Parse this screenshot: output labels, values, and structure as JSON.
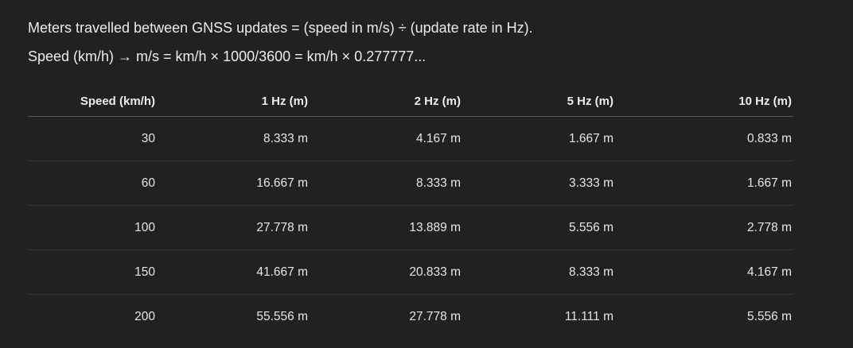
{
  "intro": {
    "line1": "Meters travelled between GNSS updates = (speed in m/s) ÷ (update rate in Hz).",
    "line2": "Speed (km/h) → m/s = km/h × 1000/3600 = km/h × 0.277777..."
  },
  "table": {
    "headers": [
      "Speed (km/h)",
      "1 Hz (m)",
      "2 Hz (m)",
      "5 Hz (m)",
      "10 Hz (m)"
    ],
    "rows": [
      [
        "30",
        "8.333 m",
        "4.167 m",
        "1.667 m",
        "0.833 m"
      ],
      [
        "60",
        "16.667 m",
        "8.333 m",
        "3.333 m",
        "1.667 m"
      ],
      [
        "100",
        "27.778 m",
        "13.889 m",
        "5.556 m",
        "2.778 m"
      ],
      [
        "150",
        "41.667 m",
        "20.833 m",
        "8.333 m",
        "4.167 m"
      ],
      [
        "200",
        "55.556 m",
        "27.778 m",
        "11.111 m",
        "5.556 m"
      ]
    ]
  },
  "colors": {
    "background": "#212121",
    "text": "#ececec",
    "header_rule": "#5a5a5a",
    "row_rule": "#353535"
  }
}
